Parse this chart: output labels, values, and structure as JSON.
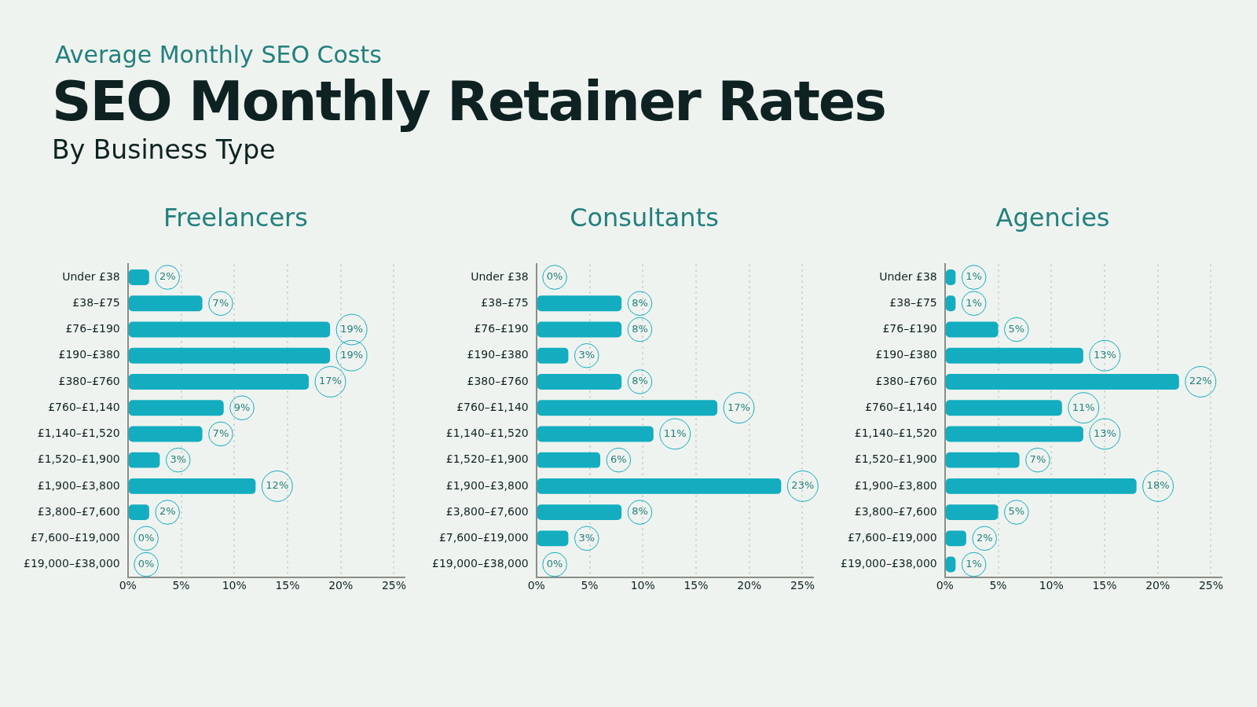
{
  "chart_data": [
    {
      "type": "bar",
      "orientation": "horizontal",
      "title": "Freelancers",
      "annotations": [
        "Average Monthly SEO Costs",
        "SEO Monthly Retainer Rates",
        "By Business Type"
      ],
      "categories": [
        "Under £38",
        "£38–£75",
        "£76–£190",
        "£190–£380",
        "£380–£760",
        "£760–£1,140",
        "£1,140–£1,520",
        "£1,520–£1,900",
        "£1,900–£3,800",
        "£3,800–£7,600",
        "£7,600–£19,000",
        "£19,000–£38,000"
      ],
      "values": [
        2,
        7,
        19,
        19,
        17,
        9,
        7,
        3,
        12,
        2,
        0,
        0
      ],
      "value_labels": [
        "2%",
        "7%",
        "19%",
        "19%",
        "17%",
        "9%",
        "7%",
        "3%",
        "12%",
        "2%",
        "0%",
        "0%"
      ],
      "color": "#13adbf",
      "xlim": [
        0,
        26
      ],
      "xticks": [
        {
          "value": 0,
          "label": "0%"
        },
        {
          "value": 5,
          "label": "5%"
        },
        {
          "value": 10,
          "label": "10%"
        },
        {
          "value": 15,
          "label": "15%"
        },
        {
          "value": 20,
          "label": "20%"
        },
        {
          "value": 25,
          "label": "25%"
        }
      ],
      "grid": "x"
    },
    {
      "type": "bar",
      "orientation": "horizontal",
      "title": "Consultants",
      "categories": [
        "Under £38",
        "£38–£75",
        "£76–£190",
        "£190–£380",
        "£380–£760",
        "£760–£1,140",
        "£1,140–£1,520",
        "£1,520–£1,900",
        "£1,900–£3,800",
        "£3,800–£7,600",
        "£7,600–£19,000",
        "£19,000–£38,000"
      ],
      "values": [
        0,
        8,
        8,
        3,
        8,
        17,
        11,
        6,
        23,
        8,
        3,
        0
      ],
      "value_labels": [
        "0%",
        "8%",
        "8%",
        "3%",
        "8%",
        "17%",
        "11%",
        "6%",
        "23%",
        "8%",
        "3%",
        "0%"
      ],
      "color": "#13adbf",
      "xlim": [
        0,
        26
      ],
      "xticks": [
        {
          "value": 0,
          "label": "0%"
        },
        {
          "value": 5,
          "label": "5%"
        },
        {
          "value": 10,
          "label": "10%"
        },
        {
          "value": 15,
          "label": "15%"
        },
        {
          "value": 20,
          "label": "20%"
        },
        {
          "value": 25,
          "label": "25%"
        }
      ],
      "grid": "x"
    },
    {
      "type": "bar",
      "orientation": "horizontal",
      "title": "Agencies",
      "categories": [
        "Under £38",
        "£38–£75",
        "£76–£190",
        "£190–£380",
        "£380–£760",
        "£760–£1,140",
        "£1,140–£1,520",
        "£1,520–£1,900",
        "£1,900–£3,800",
        "£3,800–£7,600",
        "£7,600–£19,000",
        "£19,000–£38,000"
      ],
      "values": [
        1,
        1,
        5,
        13,
        22,
        11,
        13,
        7,
        18,
        5,
        2,
        1
      ],
      "value_labels": [
        "1%",
        "1%",
        "5%",
        "13%",
        "22%",
        "11%",
        "13%",
        "7%",
        "18%",
        "5%",
        "2%",
        "1%"
      ],
      "color": "#13adbf",
      "xlim": [
        0,
        26
      ],
      "xticks": [
        {
          "value": 0,
          "label": "0%"
        },
        {
          "value": 5,
          "label": "5%"
        },
        {
          "value": 10,
          "label": "10%"
        },
        {
          "value": 15,
          "label": "15%"
        },
        {
          "value": 20,
          "label": "20%"
        },
        {
          "value": 25,
          "label": "25%"
        }
      ],
      "grid": "x"
    }
  ]
}
